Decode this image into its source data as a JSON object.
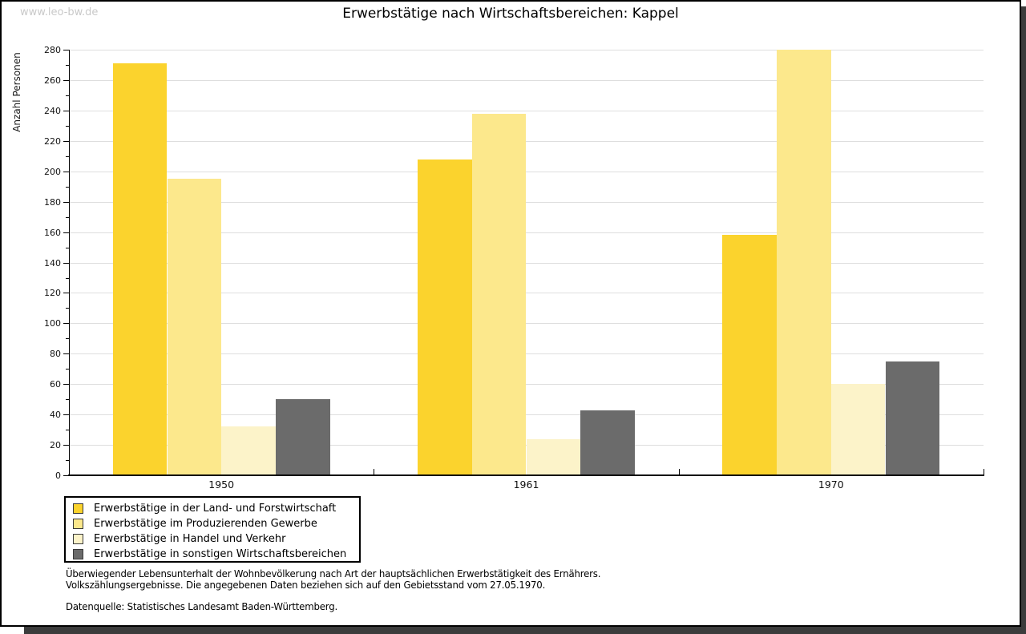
{
  "page": {
    "watermark": "www.leo-bw.de",
    "title": "Erwerbstätige nach Wirtschaftsbereichen: Kappel"
  },
  "chart_data": {
    "type": "bar",
    "title": "Erwerbstätige nach Wirtschaftsbereichen: Kappel",
    "xlabel": "",
    "ylabel": "Anzahl Personen",
    "categories": [
      "1950",
      "1961",
      "1970"
    ],
    "series": [
      {
        "name": "Erwerbstätige in der Land- und Forstwirtschaft",
        "color": "#FBD32D",
        "values": [
          271,
          208,
          158
        ]
      },
      {
        "name": "Erwerbstätige im Produzierenden Gewerbe",
        "color": "#FCE88C",
        "values": [
          195,
          238,
          280
        ]
      },
      {
        "name": "Erwerbstätige in Handel und Verkehr",
        "color": "#FCF3C9",
        "values": [
          32,
          24,
          60
        ]
      },
      {
        "name": "Erwerbstätige in sonstigen Wirtschaftsbereichen",
        "color": "#6B6B6B",
        "values": [
          50,
          43,
          75
        ]
      }
    ],
    "ylim": [
      0,
      280
    ],
    "ytick_step": 20,
    "ytick_minor_step": 10,
    "grid": true,
    "gridline_color": "#DEDEDE",
    "legend_position": "bottom-left"
  },
  "footer": {
    "note_line1": "Überwiegender Lebensunterhalt der Wohnbevölkerung nach Art der hauptsächlichen Erwerbstätigkeit des Ernährers.",
    "note_line2": "Volkszählungsergebnisse. Die angegebenen Daten beziehen sich auf den Gebietsstand vom 27.05.1970.",
    "source": "Datenquelle: Statistisches Landesamt Baden-Württemberg."
  }
}
